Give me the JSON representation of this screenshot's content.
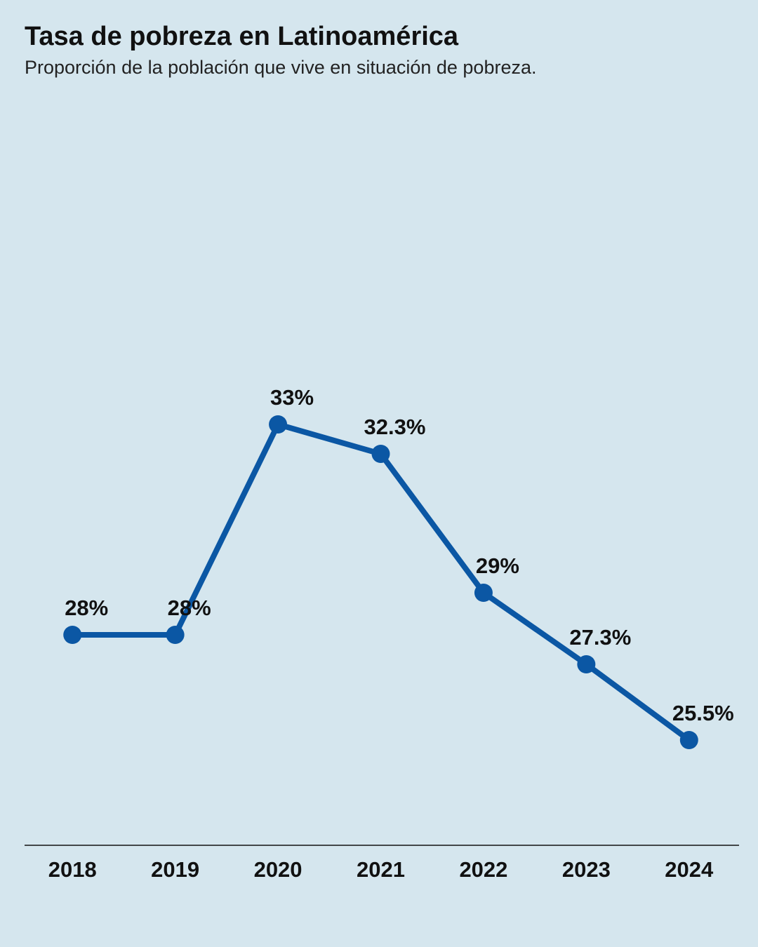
{
  "chart_data": {
    "type": "line",
    "title": "Tasa de pobreza en Latinoamérica",
    "subtitle": "Proporción de la población que vive en situación de pobreza.",
    "categories": [
      "2018",
      "2019",
      "2020",
      "2021",
      "2022",
      "2023",
      "2024"
    ],
    "values": [
      28,
      28,
      33,
      32.3,
      29,
      27.3,
      25.5
    ],
    "value_labels": [
      "28%",
      "28%",
      "33%",
      "32.3%",
      "29%",
      "27.3%",
      "25.5%"
    ],
    "color": "#0b57a4",
    "ylim": [
      23,
      40
    ]
  }
}
